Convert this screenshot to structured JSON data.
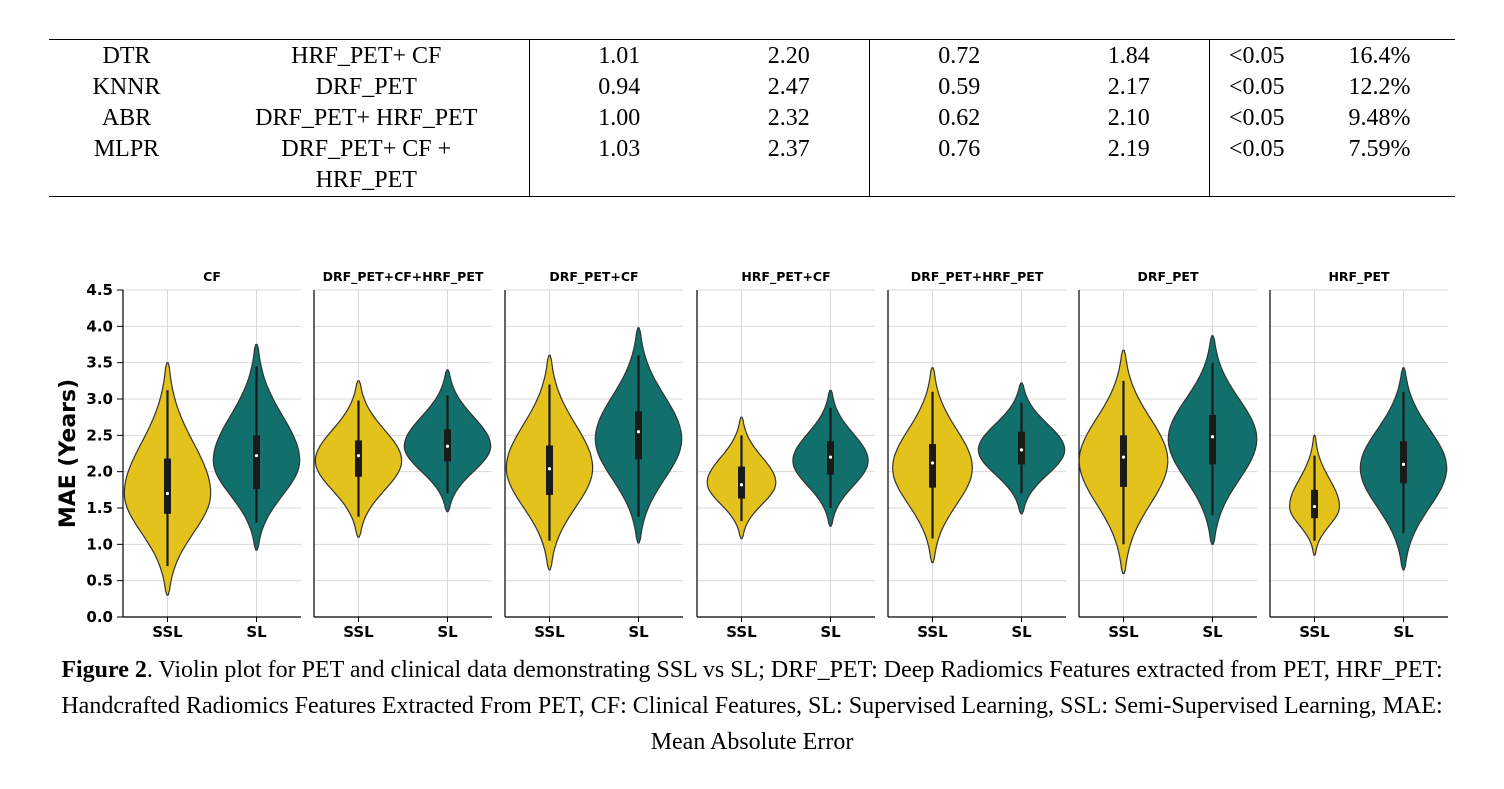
{
  "table": {
    "rows": [
      {
        "model": "DTR",
        "features": "HRF_PET+ CF",
        "v1": "1.01",
        "v2": "2.20",
        "v3": "0.72",
        "v4": "1.84",
        "p": "<0.05",
        "pct": "16.4%"
      },
      {
        "model": "KNNR",
        "features": "DRF_PET",
        "v1": "0.94",
        "v2": "2.47",
        "v3": "0.59",
        "v4": "2.17",
        "p": "<0.05",
        "pct": "12.2%"
      },
      {
        "model": "ABR",
        "features": "DRF_PET+ HRF_PET",
        "v1": "1.00",
        "v2": "2.32",
        "v3": "0.62",
        "v4": "2.10",
        "p": "<0.05",
        "pct": "9.48%"
      },
      {
        "model": "MLPR",
        "features": "DRF_PET+ CF +",
        "v1": "1.03",
        "v2": "2.37",
        "v3": "0.76",
        "v4": "2.19",
        "p": "<0.05",
        "pct": "7.59%"
      },
      {
        "model": "",
        "features": "HRF_PET",
        "v1": "",
        "v2": "",
        "v3": "",
        "v4": "",
        "p": "",
        "pct": ""
      }
    ]
  },
  "chart_data": {
    "type": "violin",
    "ylabel": "MAE (Years)",
    "ylim": [
      0,
      4.5
    ],
    "yticks": [
      "0.0",
      "0.5",
      "1.0",
      "1.5",
      "2.0",
      "2.5",
      "3.0",
      "3.5",
      "4.0",
      "4.5"
    ],
    "categories": [
      "SSL",
      "SL"
    ],
    "colors": {
      "SSL": "#e3c21c",
      "SL": "#11706b"
    },
    "grid": true,
    "panels": [
      {
        "title": "CF",
        "SSL": {
          "min": 0.3,
          "max": 3.5,
          "q1": 1.42,
          "median": 1.7,
          "q3": 2.18,
          "wlo": 0.7,
          "whi": 3.12,
          "peak": 1.7,
          "width": 0.78
        },
        "SL": {
          "min": 0.92,
          "max": 3.75,
          "q1": 1.76,
          "median": 2.22,
          "q3": 2.5,
          "wlo": 1.3,
          "whi": 3.45,
          "peak": 2.15,
          "width": 0.78
        }
      },
      {
        "title": "DRF_PET+CF+HRF_PET",
        "SSL": {
          "min": 1.1,
          "max": 3.25,
          "q1": 1.93,
          "median": 2.22,
          "q3": 2.43,
          "wlo": 1.38,
          "whi": 2.98,
          "peak": 2.15,
          "width": 0.78
        },
        "SL": {
          "min": 1.45,
          "max": 3.4,
          "q1": 2.14,
          "median": 2.35,
          "q3": 2.58,
          "wlo": 1.7,
          "whi": 3.05,
          "peak": 2.35,
          "width": 0.78
        }
      },
      {
        "title": "DRF_PET+CF",
        "SSL": {
          "min": 0.65,
          "max": 3.6,
          "q1": 1.68,
          "median": 2.04,
          "q3": 2.36,
          "wlo": 1.05,
          "whi": 3.2,
          "peak": 2.05,
          "width": 0.78
        },
        "SL": {
          "min": 1.02,
          "max": 3.98,
          "q1": 2.17,
          "median": 2.55,
          "q3": 2.83,
          "wlo": 1.38,
          "whi": 3.6,
          "peak": 2.45,
          "width": 0.78
        }
      },
      {
        "title": "HRF_PET+CF",
        "SSL": {
          "min": 1.08,
          "max": 2.75,
          "q1": 1.63,
          "median": 1.82,
          "q3": 2.07,
          "wlo": 1.32,
          "whi": 2.5,
          "peak": 1.85,
          "width": 0.62
        },
        "SL": {
          "min": 1.25,
          "max": 3.12,
          "q1": 1.96,
          "median": 2.2,
          "q3": 2.42,
          "wlo": 1.5,
          "whi": 2.88,
          "peak": 2.15,
          "width": 0.68
        }
      },
      {
        "title": "DRF_PET+HRF_PET",
        "SSL": {
          "min": 0.75,
          "max": 3.43,
          "q1": 1.78,
          "median": 2.12,
          "q3": 2.38,
          "wlo": 1.08,
          "whi": 3.1,
          "peak": 2.05,
          "width": 0.72
        },
        "SL": {
          "min": 1.42,
          "max": 3.22,
          "q1": 2.1,
          "median": 2.3,
          "q3": 2.55,
          "wlo": 1.7,
          "whi": 2.95,
          "peak": 2.3,
          "width": 0.78
        }
      },
      {
        "title": "DRF_PET",
        "SSL": {
          "min": 0.6,
          "max": 3.67,
          "q1": 1.79,
          "median": 2.2,
          "q3": 2.5,
          "wlo": 1.0,
          "whi": 3.25,
          "peak": 2.15,
          "width": 0.8
        },
        "SL": {
          "min": 1.0,
          "max": 3.87,
          "q1": 2.1,
          "median": 2.48,
          "q3": 2.78,
          "wlo": 1.4,
          "whi": 3.5,
          "peak": 2.45,
          "width": 0.8
        }
      },
      {
        "title": "HRF_PET",
        "SSL": {
          "min": 0.85,
          "max": 2.5,
          "q1": 1.36,
          "median": 1.52,
          "q3": 1.75,
          "wlo": 1.05,
          "whi": 2.22,
          "peak": 1.52,
          "width": 0.45
        },
        "SL": {
          "min": 0.65,
          "max": 3.43,
          "q1": 1.84,
          "median": 2.1,
          "q3": 2.42,
          "wlo": 1.15,
          "whi": 3.1,
          "peak": 2.05,
          "width": 0.78
        }
      }
    ]
  },
  "caption": {
    "label": "Figure 2",
    "text": ". Violin plot for PET and clinical data demonstrating SSL vs SL; DRF_PET: Deep Radiomics Features extracted from PET, HRF_PET: Handcrafted Radiomics Features Extracted From PET, CF: Clinical Features, SL: Supervised Learning, SSL: Semi-Supervised Learning, MAE: Mean Absolute Error"
  }
}
